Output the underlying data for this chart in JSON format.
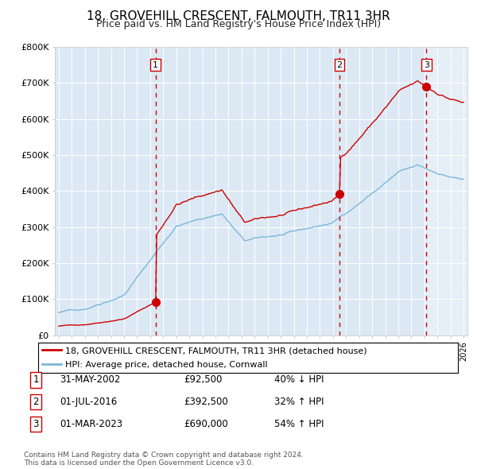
{
  "title": "18, GROVEHILL CRESCENT, FALMOUTH, TR11 3HR",
  "subtitle": "Price paid vs. HM Land Registry's House Price Index (HPI)",
  "title_fontsize": 11,
  "subtitle_fontsize": 9,
  "background_color": "#ffffff",
  "plot_bg_color": "#dce9f5",
  "ylabel": "",
  "xlabel": "",
  "ylim": [
    0,
    800000
  ],
  "yticks": [
    0,
    100000,
    200000,
    300000,
    400000,
    500000,
    600000,
    700000,
    800000
  ],
  "ytick_labels": [
    "£0",
    "£100K",
    "£200K",
    "£300K",
    "£400K",
    "£500K",
    "£600K",
    "£700K",
    "£800K"
  ],
  "year_start": 1995,
  "year_end": 2026,
  "hpi_color": "#7ab8d8",
  "price_color": "#cc0000",
  "marker_color": "#cc0000",
  "vline_color": "#cc0000",
  "sale1_date": 2002.41,
  "sale1_price": 92500,
  "sale2_date": 2016.5,
  "sale2_price": 392500,
  "sale3_date": 2023.16,
  "sale3_price": 690000,
  "legend_line1": "18, GROVEHILL CRESCENT, FALMOUTH, TR11 3HR (detached house)",
  "legend_line2": "HPI: Average price, detached house, Cornwall",
  "table_row1": [
    "1",
    "31-MAY-2002",
    "£92,500",
    "40% ↓ HPI"
  ],
  "table_row2": [
    "2",
    "01-JUL-2016",
    "£392,500",
    "32% ↑ HPI"
  ],
  "table_row3": [
    "3",
    "01-MAR-2023",
    "£690,000",
    "54% ↑ HPI"
  ],
  "footer": "Contains HM Land Registry data © Crown copyright and database right 2024.\nThis data is licensed under the Open Government Licence v3.0."
}
